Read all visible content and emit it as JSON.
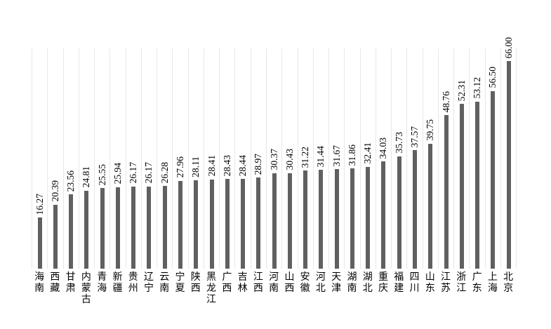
{
  "chart_data": {
    "type": "bar",
    "title": "",
    "xlabel": "",
    "ylabel": "",
    "categories": [
      "海南",
      "西藏",
      "甘肃",
      "内蒙古",
      "青海",
      "新疆",
      "贵州",
      "辽宁",
      "云南",
      "宁夏",
      "陕西",
      "黑龙江",
      "广西",
      "吉林",
      "江西",
      "河南",
      "山西",
      "安徽",
      "河北",
      "天津",
      "湖南",
      "湖北",
      "重庆",
      "福建",
      "四川",
      "山东",
      "江苏",
      "浙江",
      "广东",
      "上海",
      "北京"
    ],
    "values": [
      16.27,
      20.39,
      23.56,
      24.81,
      25.55,
      25.94,
      26.17,
      26.17,
      26.28,
      27.96,
      28.11,
      28.41,
      28.43,
      28.44,
      28.97,
      30.37,
      30.43,
      31.22,
      31.44,
      31.67,
      31.86,
      32.41,
      34.03,
      35.73,
      37.57,
      39.75,
      48.76,
      52.31,
      53.12,
      56.5,
      66.0
    ],
    "ylim": [
      0,
      70
    ],
    "value_label_decimals": 2,
    "data_label_style": "rotated-90-above-bar",
    "legend": "none",
    "grid": "vertical-category-separators",
    "colors": {
      "bar": "#606060",
      "gridline": "#e7e7e7",
      "label_text": "#000000",
      "background": "#ffffff"
    }
  }
}
